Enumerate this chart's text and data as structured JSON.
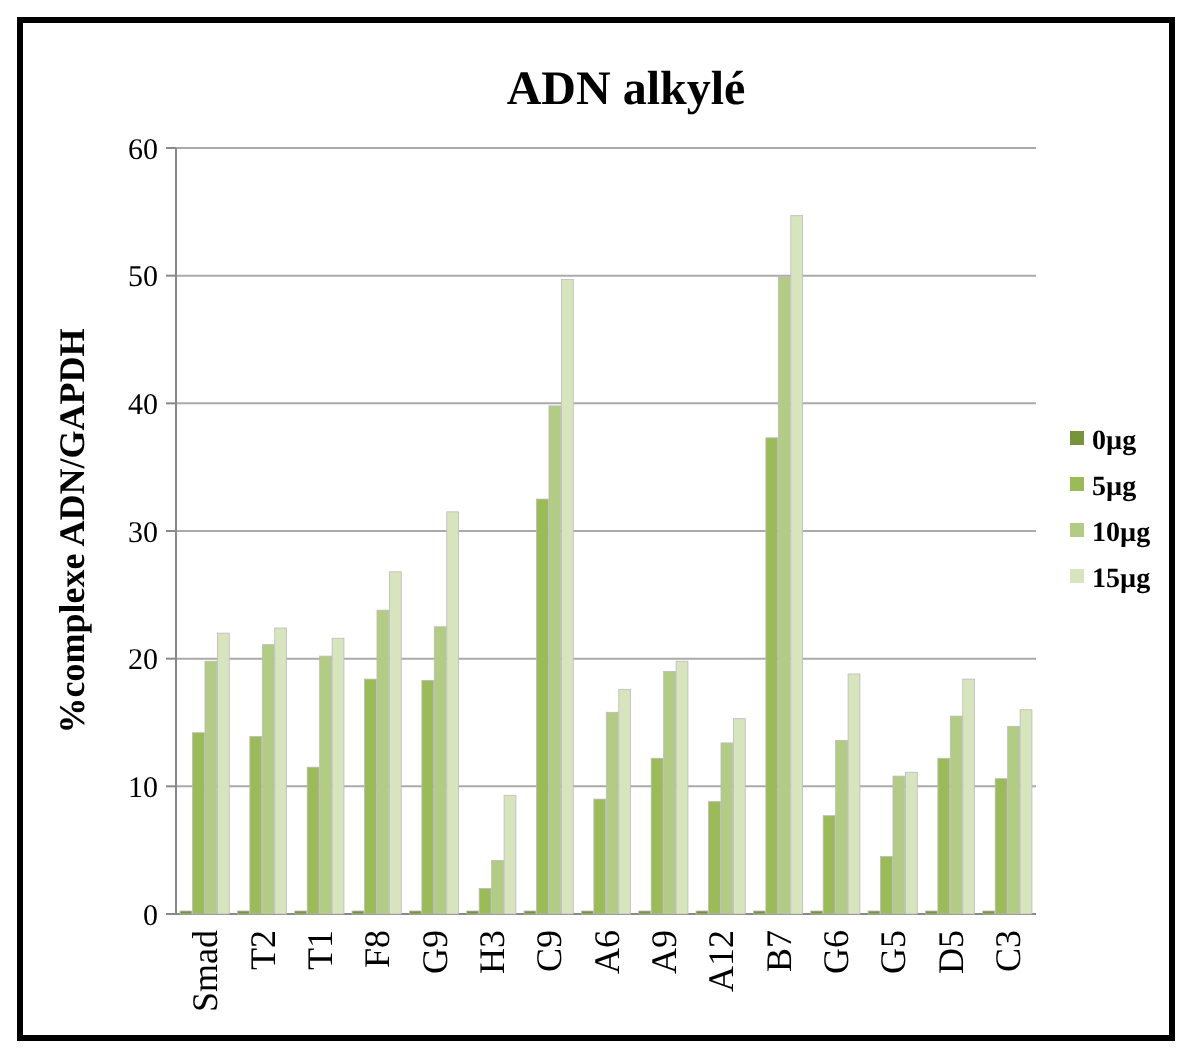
{
  "chart_data": {
    "type": "bar",
    "title": "ADN alkylé",
    "ylabel": "%complexe ADN/GAPDH",
    "categories": [
      "Smad",
      "T2",
      "T1",
      "F8",
      "G9",
      "H3",
      "C9",
      "A6",
      "A9",
      "A12",
      "B7",
      "G6",
      "G5",
      "D5",
      "C3"
    ],
    "series": [
      {
        "name": "0µg",
        "color": "#77933c",
        "values": [
          0,
          0,
          0,
          0,
          0,
          0,
          0,
          0,
          0,
          0,
          0,
          0,
          0,
          0,
          0
        ]
      },
      {
        "name": "5µg",
        "color": "#9bbb59",
        "values": [
          14.2,
          13.9,
          11.5,
          18.4,
          18.3,
          2,
          32.5,
          9,
          12.2,
          8.8,
          37.3,
          7.7,
          4.5,
          12.2,
          10.6
        ]
      },
      {
        "name": "10µg",
        "color": "#b3cc85",
        "values": [
          19.8,
          21.1,
          20.2,
          23.8,
          22.5,
          4.2,
          39.8,
          15.8,
          19,
          13.4,
          49.9,
          13.6,
          10.8,
          15.5,
          14.7
        ]
      },
      {
        "name": "15µg",
        "color": "#d7e4bd",
        "values": [
          22,
          22.4,
          21.6,
          26.8,
          31.5,
          9.3,
          49.7,
          17.6,
          19.8,
          15.3,
          54.7,
          18.8,
          11.1,
          18.4,
          16
        ]
      }
    ],
    "ylim": [
      0,
      60
    ],
    "yticks": [
      0,
      10,
      20,
      30,
      40,
      50,
      60
    ],
    "grid": "y",
    "legend": "right"
  }
}
